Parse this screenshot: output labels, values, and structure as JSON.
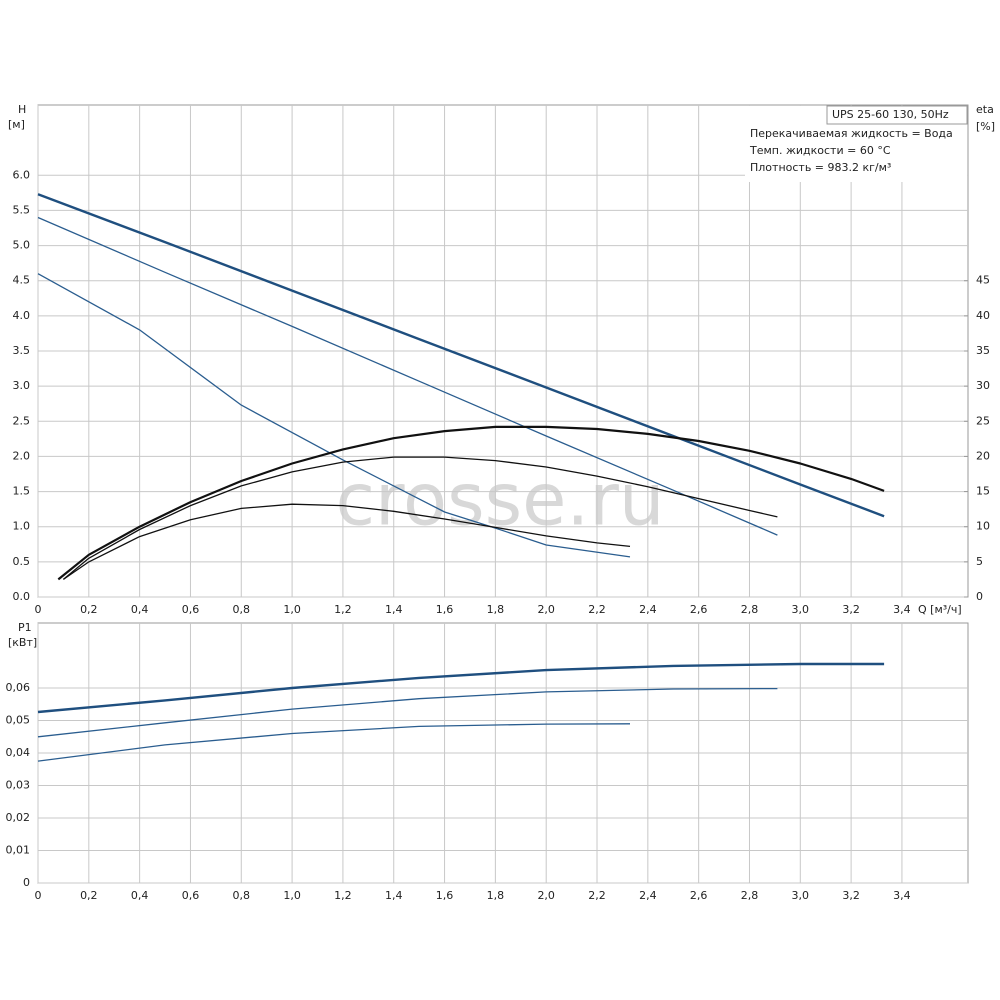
{
  "chart_data": [
    {
      "type": "line",
      "ylabel": "H",
      "yunit": "[м]",
      "y2label": "eta",
      "y2unit": "[%]",
      "xlabel": "Q [м³/ч]",
      "annotations": [
        "UPS 25-60 130, 50Hz",
        "Перекачиваемая жидкость = Вода",
        "Темп. жидкости = 60 °C",
        "Плотность = 983.2 кг/м³"
      ],
      "watermark": "crosse.ru",
      "grid": true,
      "xlim": [
        0,
        3.66
      ],
      "xticks": [
        0,
        {
          "value": 0.2,
          "label": "0,2"
        },
        {
          "value": 0.4,
          "label": "0,4"
        },
        {
          "value": 0.6,
          "label": "0,6"
        },
        {
          "value": 0.8,
          "label": "0,8"
        },
        {
          "value": 1,
          "label": "1,0"
        },
        {
          "value": 1.2,
          "label": "1,2"
        },
        {
          "value": 1.4,
          "label": "1,4"
        },
        {
          "value": 1.6,
          "label": "1,6"
        },
        {
          "value": 1.8,
          "label": "1,8"
        },
        {
          "value": 2,
          "label": "2,0"
        },
        {
          "value": 2.2,
          "label": "2,2"
        },
        {
          "value": 2.4,
          "label": "2,4"
        },
        {
          "value": 2.6,
          "label": "2,6"
        },
        {
          "value": 2.8,
          "label": "2,8"
        },
        {
          "value": 3,
          "label": "3,0"
        },
        {
          "value": 3.2,
          "label": "3,2"
        },
        {
          "value": 3.4,
          "label": "3,4"
        }
      ],
      "ylim": [
        0,
        7
      ],
      "yticks": [
        {
          "value": 0,
          "label": "0.0"
        },
        0.5,
        {
          "value": 1,
          "label": "1.0"
        },
        1.5,
        {
          "value": 2,
          "label": "2.0"
        },
        2.5,
        {
          "value": 3,
          "label": "3.0"
        },
        3.5,
        {
          "value": 4,
          "label": "4.0"
        },
        4.5,
        {
          "value": 5,
          "label": "5.0"
        },
        5.5,
        {
          "value": 6,
          "label": "6.0"
        }
      ],
      "y2lim": [
        0,
        70
      ],
      "y2ticks": [
        0,
        5,
        10,
        15,
        20,
        25,
        30,
        35,
        40,
        45
      ],
      "series": [
        {
          "color": "#1f4f7f",
          "width": 2.4,
          "x": [
            0,
            0.5,
            1,
            1.5,
            2,
            2.5,
            3,
            3.33
          ],
          "values": [
            5.73,
            5.05,
            4.36,
            3.67,
            2.98,
            2.29,
            1.6,
            1.15
          ]
        },
        {
          "color": "#2a5d8f",
          "width": 1.3,
          "x": [
            0,
            0.5,
            1,
            1.5,
            2,
            2.5,
            2.91
          ],
          "values": [
            5.4,
            4.62,
            3.85,
            3.07,
            2.29,
            1.52,
            0.88
          ]
        },
        {
          "color": "#2a5d8f",
          "width": 1.3,
          "x": [
            0,
            0.4,
            0.8,
            1.2,
            1.6,
            1.8,
            2,
            2.33
          ],
          "values": [
            4.6,
            3.8,
            2.73,
            1.95,
            1.21,
            0.98,
            0.74,
            0.57
          ]
        },
        {
          "color": "#111111",
          "width": 2.2,
          "axis": "y2",
          "x": [
            0.08,
            0.2,
            0.4,
            0.6,
            0.8,
            1,
            1.2,
            1.4,
            1.6,
            1.8,
            2,
            2.2,
            2.4,
            2.6,
            2.8,
            3,
            3.2,
            3.33
          ],
          "values": [
            2.5,
            6,
            10,
            13.5,
            16.5,
            19,
            21,
            22.6,
            23.6,
            24.2,
            24.2,
            23.9,
            23.2,
            22.2,
            20.8,
            19,
            16.8,
            15.1
          ]
        },
        {
          "color": "#111111",
          "width": 1.3,
          "axis": "y2",
          "x": [
            0.1,
            0.2,
            0.4,
            0.6,
            0.8,
            1,
            1.2,
            1.4,
            1.6,
            1.8,
            2,
            2.2,
            2.4,
            2.6,
            2.8,
            2.91
          ],
          "values": [
            2.5,
            5.5,
            9.6,
            13,
            15.8,
            17.8,
            19.2,
            19.9,
            19.9,
            19.4,
            18.5,
            17.2,
            15.7,
            14,
            12.3,
            11.4
          ]
        },
        {
          "color": "#111111",
          "width": 1.3,
          "axis": "y2",
          "x": [
            0.1,
            0.2,
            0.4,
            0.6,
            0.8,
            1,
            1.2,
            1.4,
            1.6,
            1.8,
            2,
            2.2,
            2.33
          ],
          "values": [
            2.5,
            5,
            8.6,
            11,
            12.6,
            13.2,
            13,
            12.2,
            11.1,
            9.9,
            8.7,
            7.7,
            7.2
          ]
        }
      ]
    },
    {
      "type": "line",
      "ylabel": "P1",
      "yunit": "[кВт]",
      "grid": true,
      "xlim": [
        0,
        3.66
      ],
      "xticks": [
        0,
        {
          "value": 0.2,
          "label": "0,2"
        },
        {
          "value": 0.4,
          "label": "0,4"
        },
        {
          "value": 0.6,
          "label": "0,6"
        },
        {
          "value": 0.8,
          "label": "0,8"
        },
        {
          "value": 1,
          "label": "1,0"
        },
        {
          "value": 1.2,
          "label": "1,2"
        },
        {
          "value": 1.4,
          "label": "1,4"
        },
        {
          "value": 1.6,
          "label": "1,6"
        },
        {
          "value": 1.8,
          "label": "1,8"
        },
        {
          "value": 2,
          "label": "2,0"
        },
        {
          "value": 2.2,
          "label": "2,2"
        },
        {
          "value": 2.4,
          "label": "2,4"
        },
        {
          "value": 2.6,
          "label": "2,6"
        },
        {
          "value": 2.8,
          "label": "2,8"
        },
        {
          "value": 3,
          "label": "3,0"
        },
        {
          "value": 3.2,
          "label": "3,2"
        },
        {
          "value": 3.4,
          "label": "3,4"
        }
      ],
      "ylim": [
        0,
        0.08
      ],
      "yticks": [
        0,
        {
          "value": 0.01,
          "label": "0,01"
        },
        {
          "value": 0.02,
          "label": "0,02"
        },
        {
          "value": 0.03,
          "label": "0,03"
        },
        {
          "value": 0.04,
          "label": "0,04"
        },
        {
          "value": 0.05,
          "label": "0,05"
        },
        {
          "value": 0.06,
          "label": "0,06"
        }
      ],
      "series": [
        {
          "color": "#1f4f7f",
          "width": 2.4,
          "x": [
            0,
            0.5,
            1,
            1.5,
            2,
            2.5,
            3,
            3.33
          ],
          "values": [
            0.0526,
            0.0562,
            0.06,
            0.0631,
            0.0655,
            0.0668,
            0.0674,
            0.0674
          ]
        },
        {
          "color": "#2a5d8f",
          "width": 1.3,
          "x": [
            0,
            0.5,
            1,
            1.5,
            2,
            2.5,
            2.91
          ],
          "values": [
            0.045,
            0.0493,
            0.0535,
            0.0567,
            0.0588,
            0.0597,
            0.0598
          ]
        },
        {
          "color": "#2a5d8f",
          "width": 1.3,
          "x": [
            0,
            0.5,
            1,
            1.5,
            2,
            2.33
          ],
          "values": [
            0.0375,
            0.0425,
            0.046,
            0.0482,
            0.0489,
            0.049
          ]
        }
      ]
    }
  ]
}
